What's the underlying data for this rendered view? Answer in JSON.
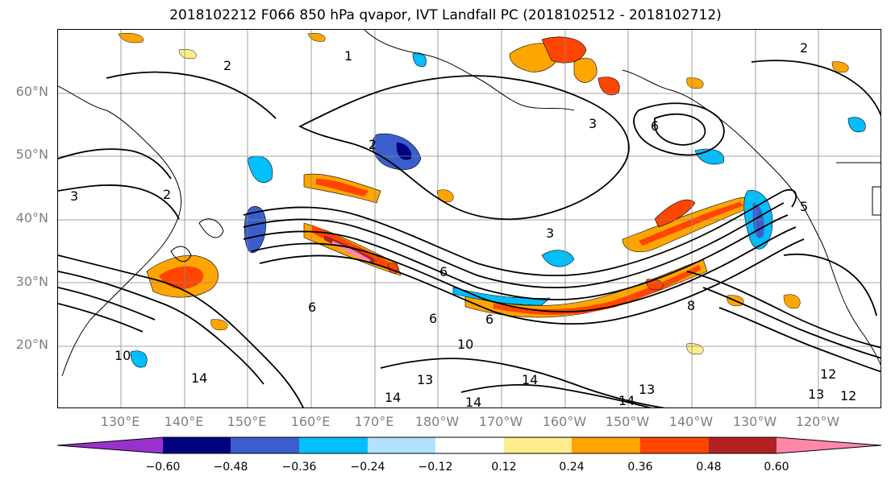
{
  "title": "2018102212 F066 850 hPa qvapor, IVT Landfall PC (2018102512 - 2018102712)",
  "map": {
    "lat_labels": [
      "60°N",
      "50°N",
      "40°N",
      "30°N",
      "20°N"
    ],
    "lon_labels": [
      "130°E",
      "140°E",
      "150°E",
      "160°E",
      "170°E",
      "180°W",
      "170°W",
      "160°W",
      "150°W",
      "140°W",
      "130°W",
      "120°W"
    ],
    "contour_labels": [
      "1",
      "2",
      "2",
      "2",
      "2",
      "3",
      "3",
      "3",
      "6",
      "6",
      "6",
      "6",
      "6",
      "8",
      "10",
      "10",
      "12",
      "12",
      "13",
      "13",
      "13",
      "14",
      "14",
      "14",
      "14",
      "14",
      "5"
    ],
    "gridlines": true
  },
  "colorbar": {
    "extend": "both",
    "ticks": [
      "−0.60",
      "−0.48",
      "−0.36",
      "−0.24",
      "−0.12",
      "0.12",
      "0.24",
      "0.36",
      "0.48",
      "0.60"
    ],
    "colors": [
      "#9932cc",
      "#000080",
      "#3a5fcd",
      "#00bfff",
      "#b0e2ff",
      "#ffffff",
      "#ffec8b",
      "#ffa500",
      "#ff4500",
      "#b22222",
      "#ff88aa"
    ]
  }
}
